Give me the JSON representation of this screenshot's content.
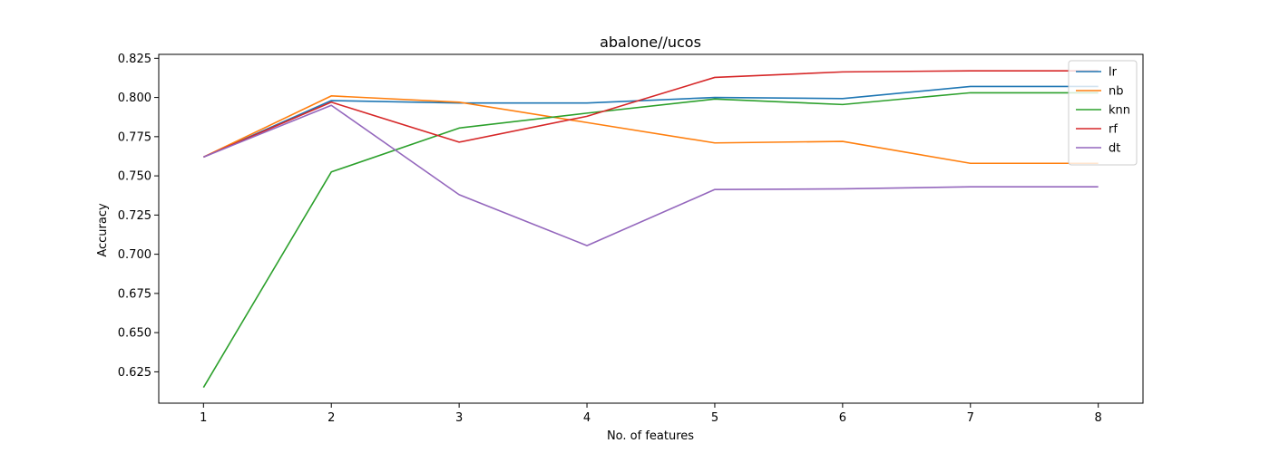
{
  "chart_data": {
    "type": "line",
    "title": "abalone//ucos",
    "xlabel": "No. of features",
    "ylabel": "Accuracy",
    "x": [
      1,
      2,
      3,
      4,
      5,
      6,
      7,
      8
    ],
    "xlim": [
      0.65,
      8.35
    ],
    "ylim": [
      0.605,
      0.8275
    ],
    "yticks": [
      0.625,
      0.65,
      0.675,
      0.7,
      0.725,
      0.75,
      0.775,
      0.8,
      0.825
    ],
    "ytick_labels": [
      "0.625",
      "0.650",
      "0.675",
      "0.700",
      "0.725",
      "0.750",
      "0.775",
      "0.800",
      "0.825"
    ],
    "xticks": [
      1,
      2,
      3,
      4,
      5,
      6,
      7,
      8
    ],
    "xtick_labels": [
      "1",
      "2",
      "3",
      "4",
      "5",
      "6",
      "7",
      "8"
    ],
    "grid": false,
    "legend_position": "top-right",
    "series": [
      {
        "name": "lr",
        "color": "#1f77b4",
        "values": [
          0.762,
          0.798,
          0.7965,
          0.7965,
          0.8,
          0.7993,
          0.807,
          0.807
        ]
      },
      {
        "name": "nb",
        "color": "#ff7f0e",
        "values": [
          0.762,
          0.801,
          0.797,
          0.784,
          0.771,
          0.772,
          0.758,
          0.758
        ]
      },
      {
        "name": "knn",
        "color": "#2ca02c",
        "values": [
          0.615,
          0.7525,
          0.7805,
          0.79,
          0.799,
          0.7955,
          0.803,
          0.803
        ]
      },
      {
        "name": "rf",
        "color": "#d62728",
        "values": [
          0.762,
          0.797,
          0.7715,
          0.788,
          0.8128,
          0.8163,
          0.817,
          0.817
        ]
      },
      {
        "name": "dt",
        "color": "#9467bd",
        "values": [
          0.762,
          0.795,
          0.738,
          0.7055,
          0.7413,
          0.7417,
          0.743,
          0.743
        ]
      }
    ]
  }
}
